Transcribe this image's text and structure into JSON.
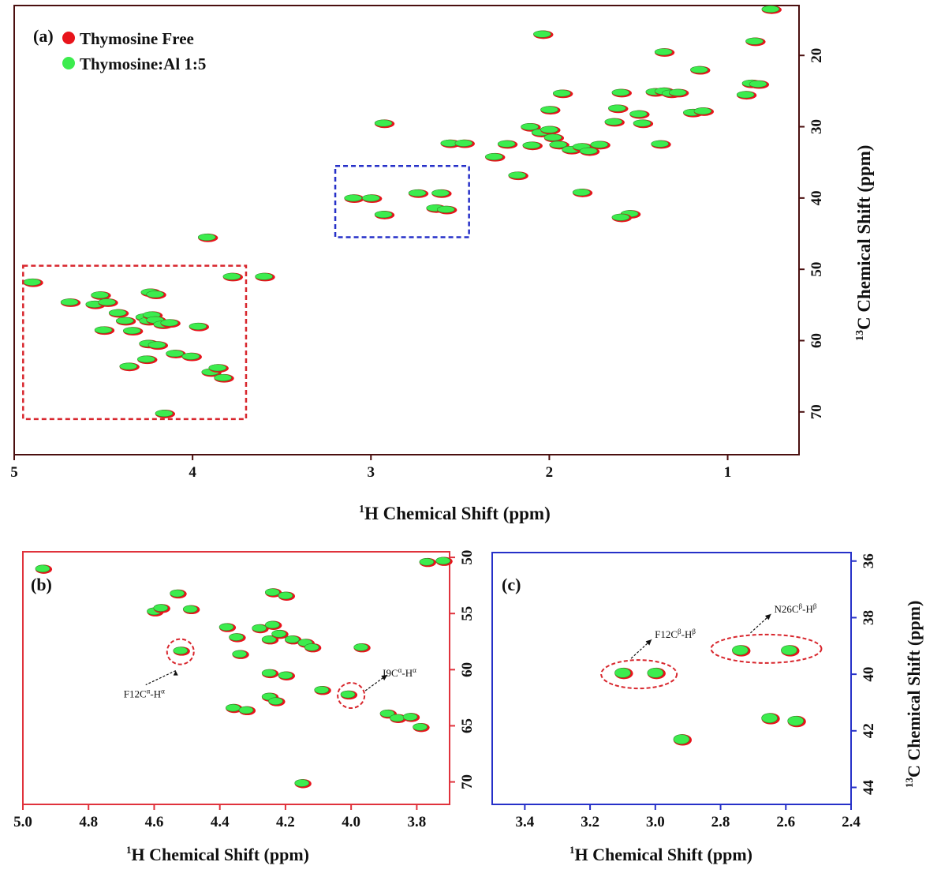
{
  "colors": {
    "free": "#e8141b",
    "complex": "#3cec4e",
    "panel_a_frame": "#4a0f0f",
    "panel_b_frame": "#e0323c",
    "panel_c_frame": "#2630c8",
    "box_red": "#d8262d",
    "box_blue": "#2630c8"
  },
  "chart_data": [
    {
      "type": "scatter",
      "panel_label": "(a)",
      "title": "",
      "xlabel_sup": "1",
      "xlabel": "H Chemical Shift (ppm)",
      "ylabel_sup": "13",
      "ylabel": "C Chemical Shift (ppm)",
      "xlim": [
        5.0,
        0.6
      ],
      "ylim": [
        13,
        76
      ],
      "xticks": [
        5,
        4,
        3,
        2,
        1
      ],
      "yticks": [
        20,
        30,
        40,
        50,
        60,
        70
      ],
      "legend": [
        {
          "name": "Thymosine Free",
          "color": "#e8141b"
        },
        {
          "name": "Thymosine:Al 1:5",
          "color": "#3cec4e"
        }
      ],
      "boxes": [
        {
          "color": "red",
          "x": [
            4.95,
            3.7
          ],
          "y": [
            49.5,
            71
          ]
        },
        {
          "color": "blue",
          "x": [
            3.2,
            2.45
          ],
          "y": [
            35.5,
            45.5
          ]
        }
      ],
      "peaks": [
        [
          4.9,
          51.8
        ],
        [
          4.69,
          54.6
        ],
        [
          4.55,
          54.9
        ],
        [
          4.52,
          53.6
        ],
        [
          4.48,
          54.6
        ],
        [
          4.5,
          58.5
        ],
        [
          4.42,
          56.1
        ],
        [
          4.38,
          57.2
        ],
        [
          4.36,
          63.6
        ],
        [
          4.34,
          58.6
        ],
        [
          4.27,
          56.7
        ],
        [
          4.25,
          57.2
        ],
        [
          4.23,
          56.4
        ],
        [
          4.21,
          57.1
        ],
        [
          4.17,
          57.7
        ],
        [
          4.13,
          57.5
        ],
        [
          4.24,
          53.2
        ],
        [
          4.21,
          53.5
        ],
        [
          4.26,
          62.6
        ],
        [
          4.25,
          60.4
        ],
        [
          4.2,
          60.6
        ],
        [
          4.1,
          61.8
        ],
        [
          4.01,
          62.2
        ],
        [
          3.97,
          58.0
        ],
        [
          3.9,
          64.4
        ],
        [
          3.86,
          63.8
        ],
        [
          3.83,
          65.2
        ],
        [
          3.78,
          51.0
        ],
        [
          3.6,
          51.0
        ],
        [
          4.16,
          70.2
        ],
        [
          3.92,
          45.5
        ],
        [
          3.1,
          40.0
        ],
        [
          3.0,
          40.0
        ],
        [
          2.93,
          42.3
        ],
        [
          2.74,
          39.3
        ],
        [
          2.61,
          39.3
        ],
        [
          2.64,
          41.4
        ],
        [
          2.58,
          41.6
        ],
        [
          2.93,
          29.5
        ],
        [
          2.56,
          32.3
        ],
        [
          2.48,
          32.3
        ],
        [
          2.31,
          34.2
        ],
        [
          2.24,
          32.4
        ],
        [
          2.18,
          36.8
        ],
        [
          2.1,
          32.6
        ],
        [
          2.11,
          30.0
        ],
        [
          2.05,
          30.8
        ],
        [
          2.0,
          30.4
        ],
        [
          1.98,
          31.5
        ],
        [
          1.95,
          32.5
        ],
        [
          1.88,
          33.2
        ],
        [
          1.82,
          32.8
        ],
        [
          1.78,
          33.4
        ],
        [
          1.72,
          32.5
        ],
        [
          1.64,
          29.3
        ],
        [
          1.62,
          27.4
        ],
        [
          1.6,
          25.2
        ],
        [
          1.5,
          28.2
        ],
        [
          1.48,
          29.5
        ],
        [
          1.41,
          25.1
        ],
        [
          1.36,
          25.0
        ],
        [
          1.32,
          25.3
        ],
        [
          1.28,
          25.2
        ],
        [
          1.2,
          28.0
        ],
        [
          1.16,
          22.0
        ],
        [
          1.14,
          27.8
        ],
        [
          1.36,
          19.5
        ],
        [
          1.38,
          32.4
        ],
        [
          1.55,
          42.2
        ],
        [
          1.6,
          42.7
        ],
        [
          1.82,
          39.2
        ],
        [
          2.0,
          27.6
        ],
        [
          1.93,
          25.3
        ],
        [
          2.04,
          17.0
        ],
        [
          0.9,
          25.5
        ],
        [
          0.87,
          23.9
        ],
        [
          0.83,
          24.0
        ],
        [
          0.85,
          18.0
        ],
        [
          0.76,
          13.5
        ]
      ]
    },
    {
      "type": "scatter",
      "panel_label": "(b)",
      "title": "",
      "xlabel_sup": "1",
      "xlabel": "H Chemical Shift (ppm)",
      "xlim": [
        5.0,
        3.7
      ],
      "ylim": [
        49.5,
        72
      ],
      "xticks": [
        "5.0",
        "4.8",
        "4.6",
        "4.4",
        "4.2",
        "4.0",
        "3.8"
      ],
      "xtick_values": [
        5.0,
        4.8,
        4.6,
        4.4,
        4.2,
        4.0,
        3.8
      ],
      "yticks": [
        50,
        55,
        60,
        65,
        70
      ],
      "annotations": [
        {
          "text": "F12C",
          "sup": "α",
          "tail": "-H",
          "tail_sup": "α",
          "x": 4.52,
          "y": 58.4
        },
        {
          "text": "I9C",
          "sup": "α",
          "tail": "-H",
          "tail_sup": "α",
          "x": 4.0,
          "y": 62.3
        }
      ],
      "peaks": [
        [
          4.94,
          51.0
        ],
        [
          4.6,
          54.8
        ],
        [
          4.58,
          54.5
        ],
        [
          4.53,
          53.2
        ],
        [
          4.49,
          54.6
        ],
        [
          4.52,
          58.3
        ],
        [
          4.38,
          56.2
        ],
        [
          4.35,
          57.1
        ],
        [
          4.36,
          63.4
        ],
        [
          4.32,
          63.6
        ],
        [
          4.34,
          58.6
        ],
        [
          4.28,
          56.3
        ],
        [
          4.24,
          56.0
        ],
        [
          4.25,
          57.3
        ],
        [
          4.22,
          56.8
        ],
        [
          4.18,
          57.3
        ],
        [
          4.14,
          57.6
        ],
        [
          4.12,
          58.0
        ],
        [
          4.24,
          53.1
        ],
        [
          4.2,
          53.4
        ],
        [
          4.25,
          60.3
        ],
        [
          4.2,
          60.5
        ],
        [
          4.25,
          62.4
        ],
        [
          4.23,
          62.8
        ],
        [
          4.09,
          61.8
        ],
        [
          4.01,
          62.2
        ],
        [
          3.97,
          58.0
        ],
        [
          3.89,
          63.9
        ],
        [
          3.86,
          64.3
        ],
        [
          3.82,
          64.2
        ],
        [
          3.79,
          65.1
        ],
        [
          4.15,
          70.1
        ],
        [
          3.77,
          50.4
        ],
        [
          3.72,
          50.3
        ]
      ]
    },
    {
      "type": "scatter",
      "panel_label": "(c)",
      "title": "",
      "xlabel_sup": "1",
      "xlabel": "H Chemical Shift (ppm)",
      "ylabel_sup": "13",
      "ylabel": "C Chemical Shift (ppm)",
      "xlim": [
        3.5,
        2.4
      ],
      "ylim": [
        35.7,
        44.6
      ],
      "xticks": [
        "3.4",
        "3.2",
        "3.0",
        "2.8",
        "2.6",
        "2.4"
      ],
      "xtick_values": [
        3.4,
        3.2,
        3.0,
        2.8,
        2.6,
        2.4
      ],
      "yticks": [
        36,
        38,
        40,
        42,
        44
      ],
      "annotations": [
        {
          "text": "F12C",
          "sup": "β",
          "tail": "-H",
          "tail_sup": "β",
          "x": 3.05,
          "y": 40.0
        },
        {
          "text": "N26C",
          "sup": "β",
          "tail": "-H",
          "tail_sup": "β",
          "x": 2.66,
          "y": 39.1
        }
      ],
      "peaks": [
        [
          3.1,
          39.95
        ],
        [
          3.0,
          39.95
        ],
        [
          2.92,
          42.3
        ],
        [
          2.74,
          39.15
        ],
        [
          2.59,
          39.15
        ],
        [
          2.65,
          41.55
        ],
        [
          2.57,
          41.65
        ]
      ]
    }
  ]
}
